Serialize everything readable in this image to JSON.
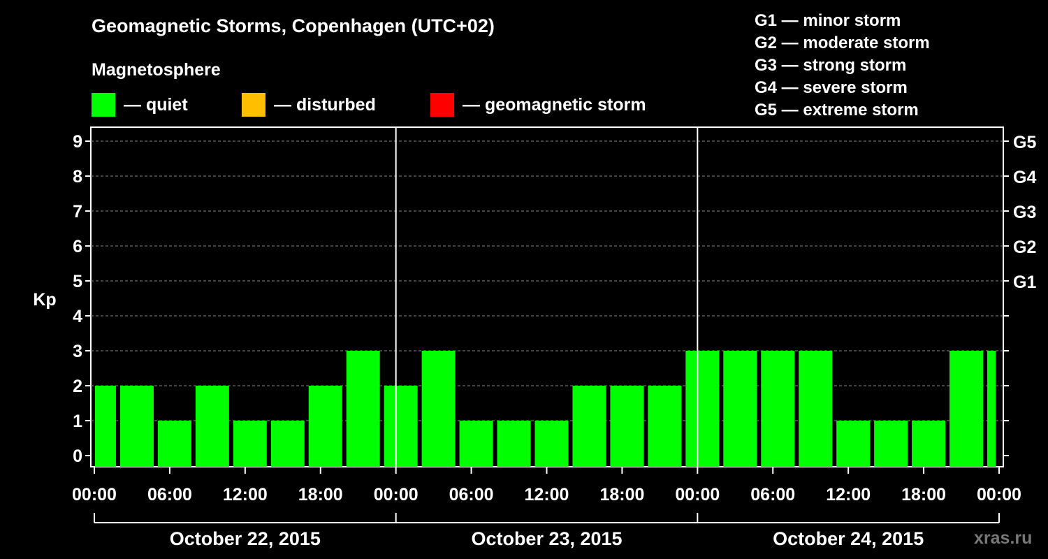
{
  "header": {
    "title": "Geomagnetic Storms, Copenhagen (UTC+02)",
    "magnetosphere_label": "Magnetosphere"
  },
  "legend": [
    {
      "label": "— quiet",
      "color": "#00ff00"
    },
    {
      "label": "— disturbed",
      "color": "#ffbf00"
    },
    {
      "label": "— geomagnetic storm",
      "color": "#ff0000"
    }
  ],
  "g_scale": [
    "G1 — minor storm",
    "G2 — moderate storm",
    "G3 — strong storm",
    "G4 — severe storm",
    "G5 — extreme storm"
  ],
  "watermark": "xras.ru",
  "chart_data": {
    "type": "bar",
    "ylabel": "Kp",
    "ylim": [
      0,
      9
    ],
    "yticks": [
      0,
      1,
      2,
      3,
      4,
      5,
      6,
      7,
      8,
      9
    ],
    "right_axis_labels": [
      {
        "kp": 5,
        "label": "G1"
      },
      {
        "kp": 6,
        "label": "G2"
      },
      {
        "kp": 7,
        "label": "G3"
      },
      {
        "kp": 8,
        "label": "G4"
      },
      {
        "kp": 9,
        "label": "G5"
      }
    ],
    "x_range_hours": [
      0,
      72
    ],
    "xticks": [
      {
        "hour": 0,
        "label": "00:00"
      },
      {
        "hour": 6,
        "label": "06:00"
      },
      {
        "hour": 12,
        "label": "12:00"
      },
      {
        "hour": 18,
        "label": "18:00"
      },
      {
        "hour": 24,
        "label": "00:00"
      },
      {
        "hour": 30,
        "label": "06:00"
      },
      {
        "hour": 36,
        "label": "12:00"
      },
      {
        "hour": 42,
        "label": "18:00"
      },
      {
        "hour": 48,
        "label": "00:00"
      },
      {
        "hour": 54,
        "label": "06:00"
      },
      {
        "hour": 60,
        "label": "12:00"
      },
      {
        "hour": 66,
        "label": "18:00"
      },
      {
        "hour": 72,
        "label": "00:00"
      }
    ],
    "days": [
      {
        "label": "October 22, 2015",
        "start_hour": 0,
        "end_hour": 24
      },
      {
        "label": "October 23, 2015",
        "start_hour": 24,
        "end_hour": 48
      },
      {
        "label": "October 24, 2015",
        "start_hour": 48,
        "end_hour": 72
      }
    ],
    "bars": [
      {
        "start_hour": 0,
        "end_hour": 2,
        "kp": 2
      },
      {
        "start_hour": 2,
        "end_hour": 5,
        "kp": 2
      },
      {
        "start_hour": 5,
        "end_hour": 8,
        "kp": 1
      },
      {
        "start_hour": 8,
        "end_hour": 11,
        "kp": 2
      },
      {
        "start_hour": 11,
        "end_hour": 14,
        "kp": 1
      },
      {
        "start_hour": 14,
        "end_hour": 17,
        "kp": 1
      },
      {
        "start_hour": 17,
        "end_hour": 20,
        "kp": 2
      },
      {
        "start_hour": 20,
        "end_hour": 23,
        "kp": 3
      },
      {
        "start_hour": 23,
        "end_hour": 26,
        "kp": 2
      },
      {
        "start_hour": 26,
        "end_hour": 29,
        "kp": 3
      },
      {
        "start_hour": 29,
        "end_hour": 32,
        "kp": 1
      },
      {
        "start_hour": 32,
        "end_hour": 35,
        "kp": 1
      },
      {
        "start_hour": 35,
        "end_hour": 38,
        "kp": 1
      },
      {
        "start_hour": 38,
        "end_hour": 41,
        "kp": 2
      },
      {
        "start_hour": 41,
        "end_hour": 44,
        "kp": 2
      },
      {
        "start_hour": 44,
        "end_hour": 47,
        "kp": 2
      },
      {
        "start_hour": 47,
        "end_hour": 50,
        "kp": 3
      },
      {
        "start_hour": 50,
        "end_hour": 53,
        "kp": 3
      },
      {
        "start_hour": 53,
        "end_hour": 56,
        "kp": 3
      },
      {
        "start_hour": 56,
        "end_hour": 59,
        "kp": 3
      },
      {
        "start_hour": 59,
        "end_hour": 62,
        "kp": 1
      },
      {
        "start_hour": 62,
        "end_hour": 65,
        "kp": 1
      },
      {
        "start_hour": 65,
        "end_hour": 68,
        "kp": 1
      },
      {
        "start_hour": 68,
        "end_hour": 71,
        "kp": 3
      },
      {
        "start_hour": 71,
        "end_hour": 72,
        "kp": 3
      }
    ],
    "bar_color": "#00ff00",
    "grid": true
  }
}
